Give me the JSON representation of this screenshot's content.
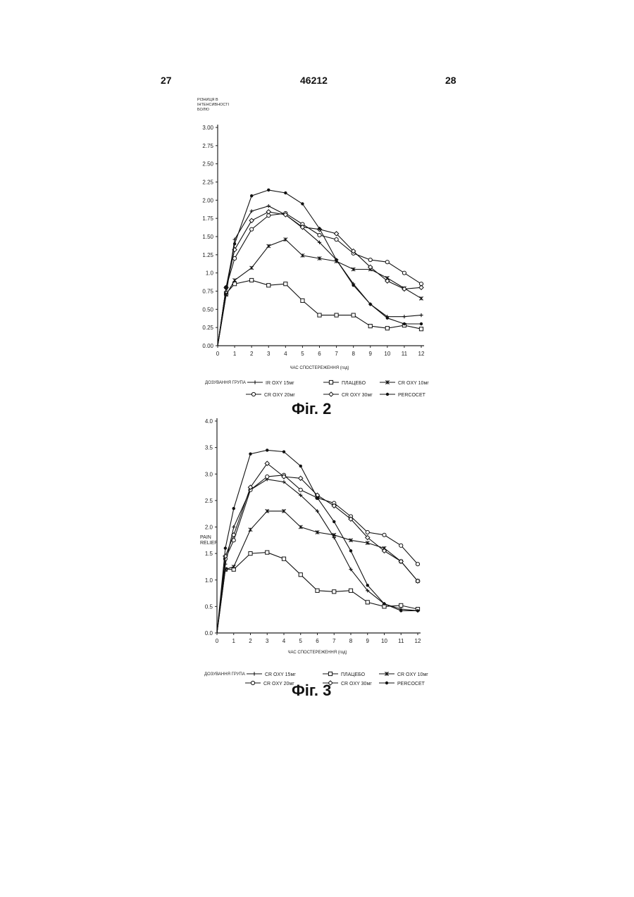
{
  "header": {
    "page_left": "27",
    "doc_number": "46212",
    "page_right": "28"
  },
  "chart_data": [
    {
      "type": "line",
      "caption": "Фіг. 2",
      "ylabel": "РІЗНИЦЯ В ІНТЕНСИВНОСТІ БОЛЮ",
      "xlabel": "ЧАС СПОСТЕРЕЖЕННЯ (год)",
      "legend_title": "ДОЗУВАННЯ ГРУПА",
      "yticks": [
        "3.00",
        "2.75",
        "2.50",
        "2.25",
        "2.00",
        "1.75",
        "1.50",
        "1.25",
        "1.0",
        "0.75",
        "0.50",
        "0.25",
        "0.00"
      ],
      "ylim": [
        0,
        3
      ],
      "x": [
        0,
        1,
        2,
        3,
        4,
        5,
        6,
        7,
        8,
        9,
        10,
        11,
        12
      ],
      "series": [
        {
          "name": "IR OXY 15мг",
          "marker": "plus",
          "x": [
            0,
            0.5,
            1,
            2,
            3,
            4,
            5,
            6,
            7,
            8,
            9,
            10,
            11,
            12
          ],
          "values": [
            0,
            0.7,
            1.46,
            1.85,
            1.92,
            1.8,
            1.62,
            1.42,
            1.18,
            0.85,
            0.57,
            0.4,
            0.4,
            0.42
          ]
        },
        {
          "name": "ПЛАЦЕБО",
          "marker": "square",
          "x": [
            0,
            0.5,
            1,
            2,
            3,
            4,
            5,
            6,
            7,
            8,
            9,
            10,
            11,
            12
          ],
          "values": [
            0,
            0.72,
            0.85,
            0.9,
            0.83,
            0.85,
            0.62,
            0.42,
            0.42,
            0.42,
            0.27,
            0.24,
            0.28,
            0.23
          ]
        },
        {
          "name": "CR OXY 10мг",
          "marker": "star",
          "x": [
            0,
            0.5,
            1,
            2,
            3,
            4,
            5,
            6,
            7,
            8,
            9,
            10,
            11,
            12
          ],
          "values": [
            0,
            0.7,
            0.9,
            1.07,
            1.37,
            1.46,
            1.24,
            1.2,
            1.16,
            1.05,
            1.05,
            0.93,
            0.79,
            0.65
          ]
        },
        {
          "name": "CR OXY 20мг",
          "marker": "circle",
          "x": [
            0,
            0.5,
            1,
            2,
            3,
            4,
            5,
            6,
            7,
            8,
            9,
            10,
            11,
            12
          ],
          "values": [
            0,
            0.8,
            1.2,
            1.6,
            1.79,
            1.82,
            1.67,
            1.52,
            1.46,
            1.27,
            1.18,
            1.15,
            1.0,
            0.85
          ]
        },
        {
          "name": "CR OXY 30мг",
          "marker": "diamond",
          "x": [
            0,
            0.5,
            1,
            2,
            3,
            4,
            5,
            6,
            7,
            8,
            9,
            10,
            11,
            12
          ],
          "values": [
            0,
            0.8,
            1.32,
            1.72,
            1.84,
            1.8,
            1.63,
            1.6,
            1.54,
            1.3,
            1.08,
            0.89,
            0.78,
            0.8
          ]
        },
        {
          "name": "PERCOCET",
          "marker": "dot",
          "x": [
            0,
            0.5,
            1,
            2,
            3,
            4,
            5,
            6,
            7,
            8,
            9,
            10,
            11,
            12
          ],
          "values": [
            0,
            0.8,
            1.4,
            2.06,
            2.14,
            2.1,
            1.95,
            1.61,
            1.18,
            0.83,
            0.57,
            0.38,
            0.3,
            0.3
          ]
        }
      ]
    },
    {
      "type": "line",
      "caption": "Фіг. 3",
      "ylabel": "PAIN RELIEF",
      "xlabel": "ЧАС СПОСТЕРЕЖЕННЯ (год)",
      "legend_title": "ДОЗУВАННЯ ГРУПА",
      "yticks": [
        "4.0",
        "3.5",
        "3.0",
        "2.5",
        "2.0",
        "1.5",
        "1.0",
        "0.5",
        "0.0"
      ],
      "ylim": [
        0,
        4
      ],
      "x": [
        0,
        1,
        2,
        3,
        4,
        5,
        6,
        7,
        8,
        9,
        10,
        11,
        12
      ],
      "series": [
        {
          "name": "CR OXY 15мг",
          "marker": "plus",
          "x": [
            0,
            0.5,
            1,
            2,
            3,
            4,
            5,
            6,
            7,
            8,
            9,
            10,
            11,
            12
          ],
          "values": [
            0,
            1.3,
            2.0,
            2.7,
            2.9,
            2.85,
            2.6,
            2.3,
            1.8,
            1.2,
            0.8,
            0.55,
            0.45,
            0.42
          ]
        },
        {
          "name": "ПЛАЦЕБО",
          "marker": "square",
          "x": [
            0,
            0.5,
            1,
            2,
            3,
            4,
            5,
            6,
            7,
            8,
            9,
            10,
            11,
            12
          ],
          "values": [
            0,
            1.2,
            1.2,
            1.5,
            1.52,
            1.4,
            1.1,
            0.8,
            0.78,
            0.8,
            0.58,
            0.5,
            0.52,
            0.45
          ]
        },
        {
          "name": "CR OXY 10мг",
          "marker": "star",
          "x": [
            0,
            0.5,
            1,
            2,
            3,
            4,
            5,
            6,
            7,
            8,
            9,
            10,
            11,
            12
          ],
          "values": [
            0,
            1.2,
            1.25,
            1.95,
            2.3,
            2.3,
            2.0,
            1.9,
            1.85,
            1.75,
            1.7,
            1.6,
            1.35,
            0.98
          ]
        },
        {
          "name": "CR OXY 20мг",
          "marker": "circle",
          "x": [
            0,
            0.5,
            1,
            2,
            3,
            4,
            5,
            6,
            7,
            8,
            9,
            10,
            11,
            12
          ],
          "values": [
            0,
            1.4,
            1.75,
            2.7,
            2.95,
            2.98,
            2.7,
            2.55,
            2.45,
            2.2,
            1.9,
            1.85,
            1.65,
            1.3
          ]
        },
        {
          "name": "CR OXY 30мг",
          "marker": "diamond",
          "x": [
            0,
            0.5,
            1,
            2,
            3,
            4,
            5,
            6,
            7,
            8,
            9,
            10,
            11,
            12
          ],
          "values": [
            0,
            1.45,
            1.85,
            2.75,
            3.2,
            2.95,
            2.92,
            2.6,
            2.4,
            2.15,
            1.8,
            1.55,
            1.35,
            0.98
          ]
        },
        {
          "name": "PERCOCET",
          "marker": "dot",
          "x": [
            0,
            0.5,
            1,
            2,
            3,
            4,
            5,
            6,
            7,
            8,
            9,
            10,
            11,
            12
          ],
          "values": [
            0,
            1.6,
            2.35,
            3.38,
            3.45,
            3.42,
            3.15,
            2.55,
            2.1,
            1.55,
            0.9,
            0.55,
            0.42,
            0.42
          ]
        }
      ]
    }
  ]
}
